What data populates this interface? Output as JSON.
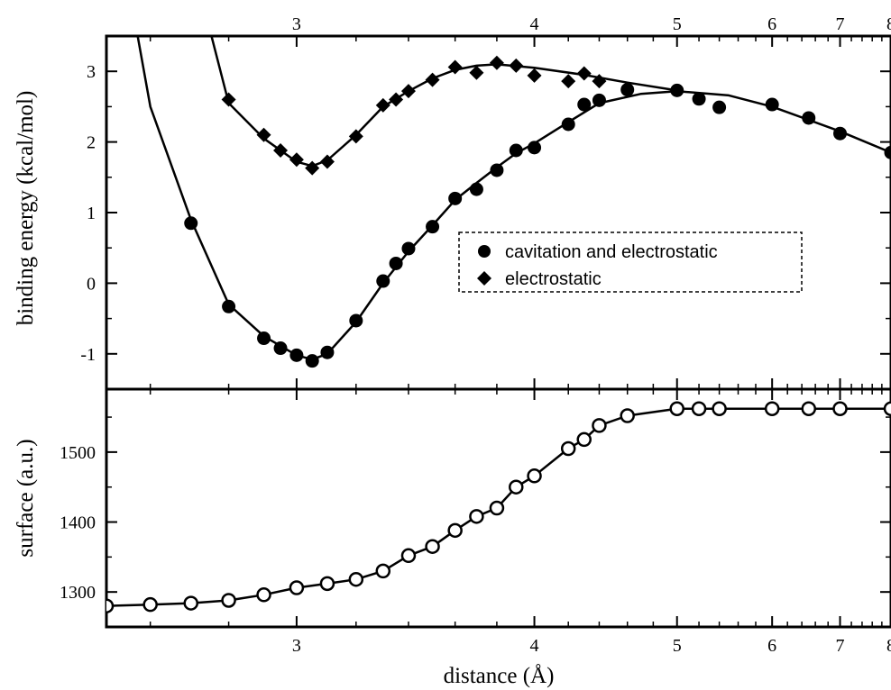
{
  "chart_data": [
    {
      "type": "scatter",
      "panel": "top",
      "title": "",
      "xlabel": "",
      "ylabel": "binding energy (kcal/mol)",
      "xlim": [
        2.5,
        8
      ],
      "ylim": [
        -1.5,
        3.5
      ],
      "xscale": "reciprocal",
      "x_ticks": [
        3,
        4,
        5,
        6,
        7,
        8
      ],
      "x_tick_labels_position": "top",
      "y_ticks": [
        -1,
        0,
        1,
        2,
        3
      ],
      "grid": false,
      "legend": {
        "placement": "center-right",
        "border": "dashed"
      },
      "series": [
        {
          "name": "cavitation and electrostatic",
          "marker": "filled-circle",
          "line": true,
          "x": [
            2.7,
            2.8,
            2.9,
            2.95,
            3.0,
            3.05,
            3.1,
            3.2,
            3.3,
            3.35,
            3.4,
            3.5,
            3.6,
            3.7,
            3.8,
            3.9,
            4.0,
            4.2,
            4.3,
            4.4,
            4.6,
            5.0,
            5.2,
            5.4,
            6.0,
            6.5,
            7.0,
            8.0
          ],
          "y": [
            0.85,
            -0.33,
            -0.78,
            -0.92,
            -1.02,
            -1.1,
            -0.98,
            -0.53,
            0.03,
            0.28,
            0.49,
            0.8,
            1.2,
            1.33,
            1.6,
            1.88,
            1.92,
            2.25,
            2.53,
            2.59,
            2.74,
            2.73,
            2.61,
            2.49,
            2.53,
            2.34,
            2.12,
            1.85
          ]
        },
        {
          "name": "electrostatic",
          "marker": "filled-diamond",
          "line": true,
          "x": [
            2.8,
            2.9,
            2.95,
            3.0,
            3.05,
            3.1,
            3.2,
            3.3,
            3.35,
            3.4,
            3.5,
            3.6,
            3.7,
            3.8,
            3.9,
            4.0,
            4.2,
            4.3,
            4.4
          ],
          "y": [
            2.6,
            2.1,
            1.88,
            1.75,
            1.63,
            1.72,
            2.08,
            2.52,
            2.6,
            2.72,
            2.88,
            3.06,
            2.98,
            3.12,
            3.08,
            2.94,
            2.86,
            2.97,
            2.86
          ]
        }
      ],
      "fit_curves": [
        {
          "for": "cavitation and electrostatic",
          "x": [
            2.55,
            2.6,
            2.7,
            2.8,
            2.9,
            3.0,
            3.05,
            3.1,
            3.2,
            3.3,
            3.4,
            3.5,
            3.6,
            3.7,
            3.8,
            3.9,
            4.0,
            4.2,
            4.4,
            4.7,
            5.0,
            5.5,
            6.0,
            7.0,
            8.0
          ],
          "y": [
            4.2,
            2.5,
            0.9,
            -0.3,
            -0.75,
            -1.02,
            -1.08,
            -1.0,
            -0.55,
            0.0,
            0.45,
            0.82,
            1.18,
            1.42,
            1.64,
            1.84,
            1.98,
            2.28,
            2.55,
            2.68,
            2.72,
            2.66,
            2.5,
            2.15,
            1.85
          ]
        },
        {
          "for": "electrostatic",
          "x": [
            2.72,
            2.8,
            2.9,
            3.0,
            3.05,
            3.1,
            3.2,
            3.3,
            3.4,
            3.5,
            3.6,
            3.7,
            3.8,
            4.0,
            4.3,
            4.6,
            5.0
          ],
          "y": [
            4.2,
            2.55,
            2.05,
            1.72,
            1.66,
            1.74,
            2.1,
            2.5,
            2.72,
            2.9,
            3.02,
            3.08,
            3.1,
            3.05,
            2.95,
            2.84,
            2.73
          ]
        }
      ]
    },
    {
      "type": "line",
      "panel": "bottom",
      "title": "",
      "xlabel": "distance (Å)",
      "ylabel": "surface (a.u.)",
      "xlim": [
        2.5,
        8
      ],
      "ylim": [
        1250,
        1590
      ],
      "xscale": "reciprocal",
      "x_ticks": [
        3,
        4,
        5,
        6,
        7,
        8
      ],
      "y_ticks": [
        1300,
        1400,
        1500
      ],
      "grid": false,
      "series": [
        {
          "name": "",
          "marker": "open-circle",
          "line": true,
          "x": [
            2.5,
            2.6,
            2.7,
            2.8,
            2.9,
            3.0,
            3.1,
            3.2,
            3.3,
            3.4,
            3.5,
            3.6,
            3.7,
            3.8,
            3.9,
            4.0,
            4.2,
            4.3,
            4.4,
            4.6,
            5.0,
            5.2,
            5.4,
            6.0,
            6.5,
            7.0,
            8.0
          ],
          "y": [
            1280,
            1282,
            1284,
            1288,
            1296,
            1306,
            1312,
            1318,
            1330,
            1352,
            1365,
            1388,
            1408,
            1420,
            1450,
            1466,
            1505,
            1518,
            1538,
            1552,
            1562,
            1562,
            1562,
            1562,
            1562,
            1562,
            1562
          ]
        }
      ]
    }
  ],
  "tick_labels": {
    "x": [
      "3",
      "4",
      "5",
      "6",
      "7",
      "8"
    ],
    "top_y": [
      "-1",
      "0",
      "1",
      "2",
      "3"
    ],
    "bottom_y": [
      "1300",
      "1400",
      "1500"
    ]
  },
  "colors": {
    "ink": "#000000",
    "background": "#ffffff"
  }
}
